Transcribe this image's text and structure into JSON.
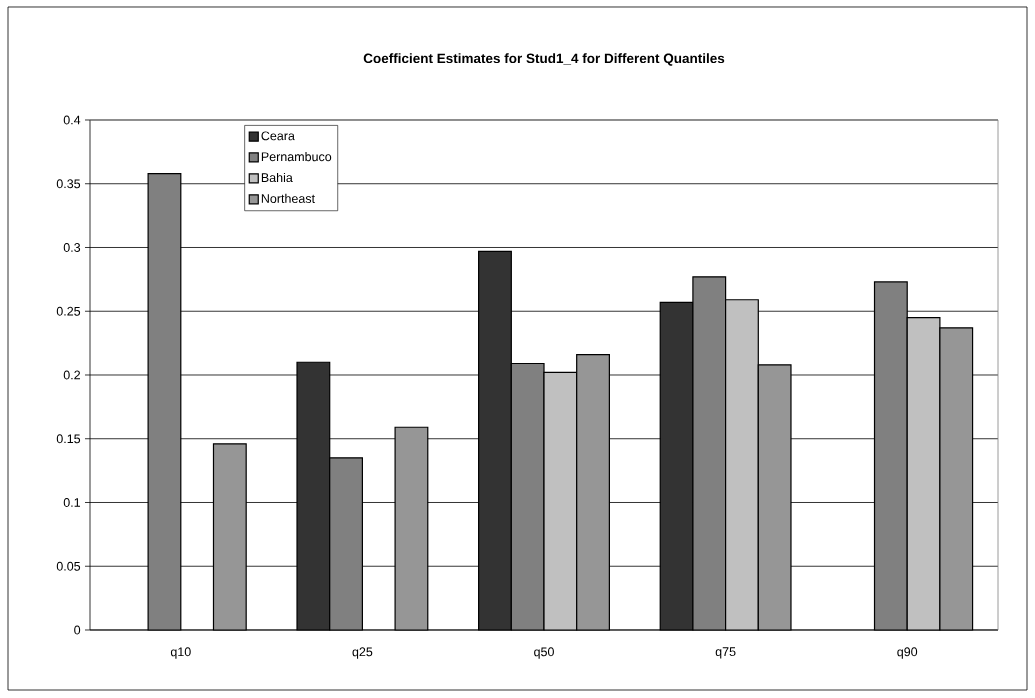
{
  "chart_data": {
    "type": "bar",
    "title": "Coefficient Estimates for Stud1_4 for Different Quantiles",
    "categories": [
      "q10",
      "q25",
      "q50",
      "q75",
      "q90"
    ],
    "series": [
      {
        "name": "Ceara",
        "color": "#333333",
        "values": [
          null,
          0.21,
          0.297,
          0.257,
          null
        ]
      },
      {
        "name": "Pernambuco",
        "color": "#808080",
        "values": [
          0.358,
          0.135,
          0.209,
          0.277,
          0.273
        ]
      },
      {
        "name": "Bahia",
        "color": "#c0c0c0",
        "values": [
          null,
          null,
          0.202,
          0.259,
          0.245
        ]
      },
      {
        "name": "Northeast",
        "color": "#969696",
        "values": [
          0.146,
          0.159,
          0.216,
          0.208,
          0.237
        ]
      }
    ],
    "ylim": [
      0,
      0.4
    ],
    "yticks": [
      0,
      0.05,
      0.1,
      0.15,
      0.2,
      0.25,
      0.3,
      0.35,
      0.4
    ],
    "grid": "y",
    "legend": "top left"
  }
}
